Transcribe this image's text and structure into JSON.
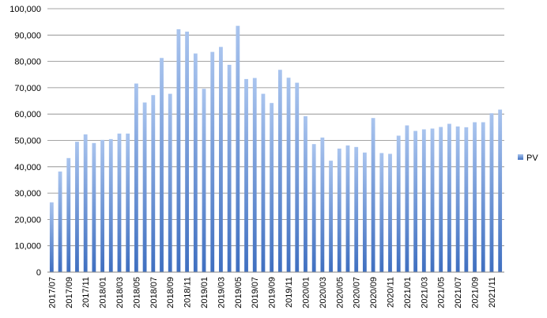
{
  "chart_data": {
    "type": "bar",
    "title": "",
    "xlabel": "",
    "ylabel": "",
    "ylim": [
      0,
      100000
    ],
    "yticks": [
      0,
      10000,
      20000,
      30000,
      40000,
      50000,
      60000,
      70000,
      80000,
      90000,
      100000
    ],
    "ytick_labels": [
      "0",
      "10,000",
      "20,000",
      "30,000",
      "40,000",
      "50,000",
      "60,000",
      "70,000",
      "80,000",
      "90,000",
      "100,000"
    ],
    "grid": "horizontal",
    "legend_position": "right",
    "bar_color": "#4f81bd",
    "categories": [
      "2017/07",
      "2017/08",
      "2017/09",
      "2017/10",
      "2017/11",
      "2017/12",
      "2018/01",
      "2018/02",
      "2018/03",
      "2018/04",
      "2018/05",
      "2018/06",
      "2018/07",
      "2018/08",
      "2018/09",
      "2018/10",
      "2018/11",
      "2018/12",
      "2019/01",
      "2019/02",
      "2019/03",
      "2019/04",
      "2019/05",
      "2019/06",
      "2019/07",
      "2019/08",
      "2019/09",
      "2019/10",
      "2019/11",
      "2019/12",
      "2020/01",
      "2020/02",
      "2020/03",
      "2020/04",
      "2020/05",
      "2020/06",
      "2020/07",
      "2020/08",
      "2020/09",
      "2020/10",
      "2020/11",
      "2020/12",
      "2021/01",
      "2021/02",
      "2021/03",
      "2021/04",
      "2021/05",
      "2021/06",
      "2021/07",
      "2021/08",
      "2021/09",
      "2021/10",
      "2021/11",
      "2021/12"
    ],
    "xtick_labels": [
      "2017/07",
      "2017/09",
      "2017/11",
      "2018/01",
      "2018/03",
      "2018/05",
      "2018/07",
      "2018/09",
      "2018/11",
      "2019/01",
      "2019/03",
      "2019/05",
      "2019/07",
      "2019/09",
      "2019/11",
      "2020/01",
      "2020/03",
      "2020/05",
      "2020/07",
      "2020/09",
      "2020/11",
      "2021/01",
      "2021/03",
      "2021/05",
      "2021/07",
      "2021/09",
      "2021/11"
    ],
    "series": [
      {
        "name": "PV",
        "values": [
          26500,
          38200,
          43300,
          49500,
          52300,
          49000,
          50200,
          50500,
          52600,
          52600,
          71600,
          64400,
          67200,
          81300,
          67700,
          92200,
          91300,
          83000,
          69600,
          83600,
          85500,
          78700,
          93500,
          73300,
          73700,
          67700,
          64200,
          76800,
          73800,
          71900,
          59200,
          48600,
          51100,
          42300,
          46900,
          48100,
          47500,
          45400,
          58500,
          45200,
          44900,
          51800,
          55700,
          53600,
          54200,
          54500,
          55100,
          56300,
          55300,
          55000,
          56900,
          56900,
          60300,
          61700
        ]
      }
    ]
  }
}
